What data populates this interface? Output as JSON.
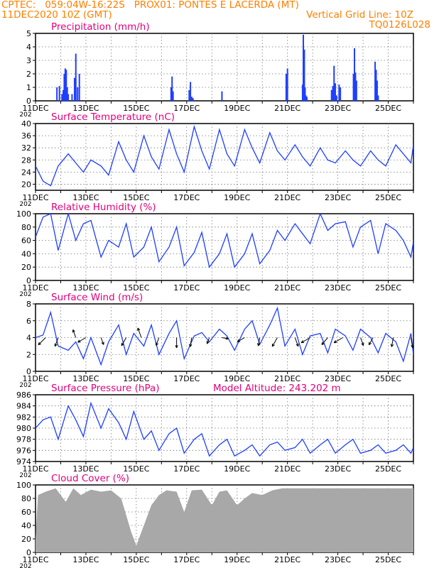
{
  "header": {
    "left_line1": "CPTEC:   059:04W-16:22S   PROX01: PONTES E LACERDA (MT)",
    "left_line2": "11DEC2020 10Z (GMT)",
    "right_line2": "Vertical Grid Line: 10Z",
    "right_line3": "TQ0126L028"
  },
  "colors": {
    "header": "#ff7f00",
    "title": "#e0007f",
    "series": "#1f3fff",
    "cloud": "#a8a8a8",
    "wind_arrow": "#000000"
  },
  "x_axis": {
    "start_day": 11,
    "end_day": 26,
    "tick_labels": [
      "11DEC",
      "13DEC",
      "15DEC",
      "17DEC",
      "19DEC",
      "21DEC",
      "23DEC",
      "25DEC"
    ],
    "tick_days": [
      11,
      13,
      15,
      17,
      19,
      21,
      23,
      25
    ],
    "year_fragment": "202"
  },
  "chart_data": [
    {
      "id": "precip",
      "type": "bar",
      "title": "Precipitation (mm/h)",
      "ylim": [
        0,
        5
      ],
      "yticks": [
        0,
        1,
        2,
        3,
        4,
        5
      ],
      "x": [
        11.85,
        11.95,
        12.05,
        12.1,
        12.14,
        12.18,
        12.22,
        12.26,
        12.3,
        12.45,
        12.55,
        12.6,
        12.67,
        12.74,
        16.38,
        16.42,
        16.46,
        17.1,
        17.15,
        17.2,
        17.25,
        18.4,
        20.95,
        21.0,
        21.6,
        21.63,
        21.67,
        21.7,
        21.73,
        21.77,
        22.75,
        22.8,
        22.85,
        22.9,
        22.95,
        23.05,
        23.1,
        23.62,
        23.66,
        23.7,
        23.74,
        24.48,
        24.52,
        24.56,
        24.6
      ],
      "values": [
        1.0,
        1.1,
        0.5,
        0.8,
        2.0,
        2.4,
        2.3,
        1.0,
        0.5,
        0.5,
        1.7,
        3.5,
        1.0,
        2.0,
        1.0,
        1.8,
        0.7,
        0.8,
        1.4,
        0.3,
        0.2,
        0.7,
        2.0,
        2.4,
        1.2,
        4.9,
        3.8,
        1.0,
        0.4,
        0.3,
        0.8,
        1.1,
        2.6,
        1.3,
        0.4,
        1.2,
        1.0,
        2.0,
        3.9,
        2.1,
        1.5,
        2.9,
        2.3,
        1.5,
        0.4
      ]
    },
    {
      "id": "temperature",
      "type": "line",
      "title": "Surface Temperature (nC)",
      "ylim": [
        18,
        40
      ],
      "yticks": [
        20,
        24,
        28,
        32,
        36,
        40
      ],
      "x": [
        11.0,
        11.3,
        11.6,
        11.9,
        12.3,
        12.6,
        12.9,
        13.2,
        13.6,
        13.9,
        14.3,
        14.6,
        14.9,
        15.3,
        15.6,
        15.9,
        16.3,
        16.6,
        16.9,
        17.3,
        17.6,
        17.9,
        18.3,
        18.6,
        18.9,
        19.3,
        19.6,
        19.9,
        20.3,
        20.6,
        20.9,
        21.3,
        21.6,
        21.9,
        22.3,
        22.6,
        22.9,
        23.3,
        23.6,
        23.9,
        24.3,
        24.6,
        24.9,
        25.3,
        25.6,
        25.9,
        26.0
      ],
      "values": [
        26,
        21,
        19.5,
        26,
        30,
        27,
        24,
        28,
        26,
        23,
        34,
        28,
        24,
        36,
        29,
        25,
        38,
        30,
        24,
        39,
        31,
        25,
        38,
        30,
        26,
        38,
        32,
        27,
        37,
        31,
        28,
        33,
        29,
        26,
        32,
        28,
        27,
        31,
        28,
        26,
        31,
        28,
        26,
        33,
        30,
        27,
        33
      ]
    },
    {
      "id": "humidity",
      "type": "line",
      "title": "Relative Humidity (%)",
      "ylim": [
        0,
        100
      ],
      "yticks": [
        0,
        20,
        40,
        60,
        80,
        100
      ],
      "x": [
        11.0,
        11.3,
        11.6,
        11.9,
        12.3,
        12.6,
        12.9,
        13.2,
        13.6,
        13.9,
        14.3,
        14.6,
        14.9,
        15.3,
        15.6,
        15.9,
        16.3,
        16.6,
        16.9,
        17.3,
        17.6,
        17.9,
        18.3,
        18.6,
        18.9,
        19.3,
        19.6,
        19.9,
        20.3,
        20.6,
        20.9,
        21.3,
        21.6,
        21.9,
        22.3,
        22.6,
        22.9,
        23.3,
        23.6,
        23.9,
        24.3,
        24.6,
        24.9,
        25.3,
        25.6,
        25.9,
        26.0
      ],
      "values": [
        65,
        95,
        100,
        45,
        100,
        60,
        85,
        90,
        35,
        60,
        50,
        85,
        35,
        50,
        80,
        28,
        50,
        80,
        22,
        42,
        72,
        20,
        40,
        70,
        20,
        40,
        70,
        25,
        45,
        75,
        60,
        85,
        70,
        55,
        100,
        75,
        85,
        88,
        50,
        80,
        90,
        40,
        85,
        75,
        60,
        35,
        58
      ]
    },
    {
      "id": "wind",
      "type": "line",
      "title": "Surface Wind (m/s)",
      "ylim": [
        0,
        8
      ],
      "yticks": [
        0,
        2,
        4,
        6,
        8
      ],
      "x": [
        11.0,
        11.3,
        11.6,
        11.9,
        12.3,
        12.6,
        12.9,
        13.2,
        13.6,
        13.9,
        14.3,
        14.6,
        14.9,
        15.3,
        15.6,
        15.9,
        16.3,
        16.6,
        16.9,
        17.3,
        17.6,
        17.9,
        18.3,
        18.6,
        18.9,
        19.3,
        19.6,
        19.9,
        20.3,
        20.6,
        20.9,
        21.3,
        21.6,
        21.9,
        22.3,
        22.6,
        22.9,
        23.3,
        23.6,
        23.9,
        24.3,
        24.6,
        24.9,
        25.3,
        25.6,
        25.9,
        26.0
      ],
      "values": [
        4,
        4.3,
        7,
        3,
        2.5,
        3.5,
        1.5,
        4,
        0.8,
        3.5,
        5.5,
        2,
        4.5,
        3,
        5.5,
        2,
        4.5,
        6,
        1.5,
        4.2,
        4.6,
        3.5,
        5,
        4.2,
        2.5,
        5,
        6,
        3.2,
        5.5,
        7.5,
        3,
        5,
        2,
        4.2,
        4.5,
        2.2,
        5,
        4.2,
        2.5,
        5,
        4,
        2.2,
        4.5,
        3.5,
        1.2,
        4.5,
        2
      ],
      "arrow_days": [
        11.4,
        11.9,
        12.6,
        13.0,
        13.6,
        14.6,
        15.2,
        15.9,
        16.6,
        17.2,
        17.9,
        18.4,
        19.3,
        19.9,
        20.6,
        21.3,
        21.9,
        22.6,
        23.2,
        23.9,
        24.4,
        25.2,
        25.9
      ],
      "arrow_dirs": [
        315,
        340,
        200,
        300,
        20,
        330,
        200,
        340,
        0,
        350,
        340,
        80,
        300,
        350,
        330,
        20,
        300,
        320,
        300,
        20,
        330,
        350,
        10
      ],
      "arrow_speeds": [
        4,
        3.5,
        3,
        3.5,
        2.5,
        3.5,
        4,
        3,
        4,
        3.5,
        2,
        2,
        3,
        3,
        4,
        3.5,
        4,
        3.5,
        4,
        3,
        3,
        3.5,
        4
      ]
    },
    {
      "id": "pressure",
      "type": "line",
      "title": "Surface Pressure (hPa)",
      "ylim": [
        974,
        986
      ],
      "yticks": [
        974,
        976,
        978,
        980,
        982,
        984,
        986
      ],
      "x": [
        11.0,
        11.3,
        11.6,
        11.9,
        12.3,
        12.6,
        12.9,
        13.2,
        13.6,
        13.9,
        14.3,
        14.6,
        14.9,
        15.3,
        15.6,
        15.9,
        16.3,
        16.6,
        16.9,
        17.3,
        17.6,
        17.9,
        18.3,
        18.6,
        18.9,
        19.3,
        19.6,
        19.9,
        20.3,
        20.6,
        20.9,
        21.3,
        21.6,
        21.9,
        22.3,
        22.6,
        22.9,
        23.3,
        23.6,
        23.9,
        24.3,
        24.6,
        24.9,
        25.3,
        25.6,
        25.9,
        26.0
      ],
      "values": [
        980,
        981.5,
        982,
        978,
        984,
        981.5,
        978.5,
        984.5,
        980,
        983.5,
        981,
        978,
        983,
        978,
        979.5,
        976,
        979,
        980,
        975.5,
        978,
        979,
        975,
        977,
        978,
        975,
        976,
        977,
        975,
        977,
        977.5,
        976,
        976.5,
        978,
        975.5,
        977,
        978,
        975.5,
        977,
        978,
        975.5,
        976,
        977,
        975.5,
        976,
        977,
        975.5,
        976.5
      ]
    },
    {
      "id": "cloud",
      "type": "area",
      "title": "Cloud Cover (%)",
      "ylim": [
        0,
        100
      ],
      "yticks": [
        0,
        20,
        40,
        60,
        80,
        100
      ],
      "x": [
        11.0,
        11.1,
        11.4,
        11.8,
        12.2,
        12.5,
        12.8,
        13.2,
        13.6,
        14.0,
        14.4,
        14.8,
        15.0,
        15.3,
        15.6,
        15.9,
        16.2,
        16.6,
        16.9,
        17.2,
        17.6,
        18.0,
        18.3,
        18.6,
        19.0,
        19.3,
        19.6,
        20.0,
        20.4,
        20.8,
        21.2,
        21.6,
        22.0,
        22.4,
        22.8,
        23.2,
        23.6,
        24.0,
        24.4,
        24.8,
        25.2,
        25.6,
        26.0
      ],
      "values": [
        20,
        85,
        90,
        95,
        75,
        95,
        85,
        93,
        90,
        92,
        80,
        30,
        10,
        40,
        70,
        85,
        92,
        90,
        60,
        92,
        93,
        70,
        90,
        92,
        70,
        80,
        88,
        85,
        92,
        95,
        95,
        95,
        95,
        95,
        95,
        95,
        95,
        95,
        95,
        95,
        95,
        95,
        95
      ]
    }
  ],
  "model_altitude": "Model Altitude: 243.202 m"
}
